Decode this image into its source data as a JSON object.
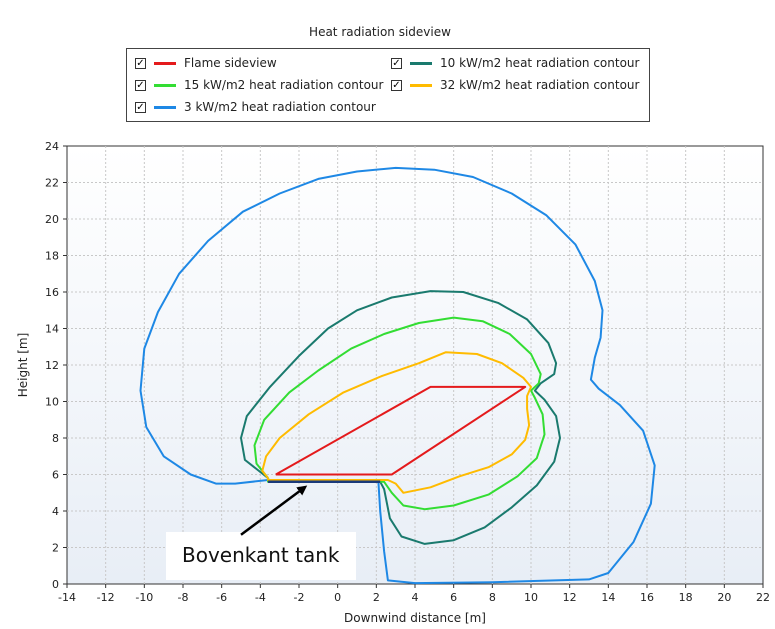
{
  "chart_data": {
    "type": "line",
    "title": "Heat radiation sideview",
    "xlabel": "Downwind distance [m]",
    "ylabel": "Height [m]",
    "xlim": [
      -14,
      22
    ],
    "ylim": [
      0,
      24
    ],
    "xticks": [
      -14,
      -12,
      -10,
      -8,
      -6,
      -4,
      -2,
      0,
      2,
      4,
      6,
      8,
      10,
      12,
      14,
      16,
      18,
      20,
      22
    ],
    "yticks": [
      0,
      2,
      4,
      6,
      8,
      10,
      12,
      14,
      16,
      18,
      20,
      22,
      24
    ],
    "grid": true,
    "legend_position": "top",
    "series": [
      {
        "name": "Flame sideview",
        "color": "#e41a1c",
        "closed": true,
        "points": [
          [
            -3.2,
            6.0
          ],
          [
            2.8,
            6.0
          ],
          [
            9.7,
            10.8
          ],
          [
            4.8,
            10.8
          ],
          [
            -3.2,
            6.0
          ]
        ]
      },
      {
        "name": "10 kW/m2 heat radiation contour",
        "color": "#1a7a6e",
        "closed": true,
        "points": [
          [
            -3.6,
            5.8
          ],
          [
            -4.8,
            6.8
          ],
          [
            -5.0,
            8.0
          ],
          [
            -4.7,
            9.2
          ],
          [
            -3.5,
            10.8
          ],
          [
            -2.0,
            12.5
          ],
          [
            -0.5,
            14.0
          ],
          [
            1.0,
            15.0
          ],
          [
            2.8,
            15.7
          ],
          [
            4.8,
            16.05
          ],
          [
            6.5,
            16.0
          ],
          [
            8.3,
            15.4
          ],
          [
            9.8,
            14.5
          ],
          [
            10.9,
            13.2
          ],
          [
            11.3,
            12.1
          ],
          [
            11.2,
            11.5
          ],
          [
            10.5,
            11.0
          ],
          [
            10.2,
            10.6
          ],
          [
            10.7,
            10.1
          ],
          [
            11.3,
            9.2
          ],
          [
            11.5,
            8.0
          ],
          [
            11.2,
            6.7
          ],
          [
            10.3,
            5.4
          ],
          [
            9.0,
            4.2
          ],
          [
            7.6,
            3.1
          ],
          [
            6.0,
            2.4
          ],
          [
            4.5,
            2.2
          ],
          [
            3.3,
            2.6
          ],
          [
            2.7,
            3.6
          ],
          [
            2.4,
            5.2
          ],
          [
            2.2,
            5.6
          ],
          [
            -3.6,
            5.6
          ],
          [
            -3.6,
            5.8
          ]
        ]
      },
      {
        "name": "15 kW/m2 heat radiation contour",
        "color": "#33dd33",
        "closed": true,
        "points": [
          [
            -3.6,
            5.8
          ],
          [
            -4.2,
            6.6
          ],
          [
            -4.3,
            7.6
          ],
          [
            -3.8,
            9.0
          ],
          [
            -2.5,
            10.5
          ],
          [
            -1.0,
            11.7
          ],
          [
            0.7,
            12.9
          ],
          [
            2.4,
            13.7
          ],
          [
            4.2,
            14.3
          ],
          [
            6.0,
            14.6
          ],
          [
            7.5,
            14.4
          ],
          [
            8.9,
            13.7
          ],
          [
            10.0,
            12.6
          ],
          [
            10.5,
            11.5
          ],
          [
            10.4,
            11.0
          ],
          [
            10.0,
            10.6
          ],
          [
            10.2,
            10.2
          ],
          [
            10.6,
            9.3
          ],
          [
            10.7,
            8.2
          ],
          [
            10.3,
            6.9
          ],
          [
            9.3,
            5.9
          ],
          [
            7.8,
            4.9
          ],
          [
            6.0,
            4.3
          ],
          [
            4.5,
            4.1
          ],
          [
            3.4,
            4.3
          ],
          [
            2.8,
            5.0
          ],
          [
            2.4,
            5.6
          ],
          [
            -3.6,
            5.6
          ],
          [
            -3.6,
            5.8
          ]
        ]
      },
      {
        "name": "32 kW/m2 heat radiation contour",
        "color": "#ffbb00",
        "closed": true,
        "points": [
          [
            -3.6,
            5.8
          ],
          [
            -3.9,
            6.2
          ],
          [
            -3.7,
            7.0
          ],
          [
            -3.0,
            8.0
          ],
          [
            -1.5,
            9.3
          ],
          [
            0.3,
            10.5
          ],
          [
            2.3,
            11.4
          ],
          [
            4.2,
            12.1
          ],
          [
            5.6,
            12.7
          ],
          [
            7.2,
            12.6
          ],
          [
            8.5,
            12.1
          ],
          [
            9.6,
            11.3
          ],
          [
            10.0,
            10.8
          ],
          [
            9.8,
            10.3
          ],
          [
            9.8,
            9.6
          ],
          [
            9.9,
            8.7
          ],
          [
            9.7,
            7.9
          ],
          [
            9.0,
            7.1
          ],
          [
            7.8,
            6.4
          ],
          [
            6.3,
            5.9
          ],
          [
            4.8,
            5.3
          ],
          [
            3.4,
            5.0
          ],
          [
            3.0,
            5.5
          ],
          [
            2.6,
            5.7
          ],
          [
            -3.6,
            5.7
          ],
          [
            -3.6,
            5.8
          ]
        ]
      },
      {
        "name": "3 kW/m2 heat radiation contour",
        "color": "#1e88e5",
        "closed": true,
        "points": [
          [
            -3.6,
            5.7
          ],
          [
            -5.3,
            5.5
          ],
          [
            -6.3,
            5.5
          ],
          [
            -7.6,
            6.0
          ],
          [
            -9.0,
            7.0
          ],
          [
            -9.9,
            8.6
          ],
          [
            -10.2,
            10.6
          ],
          [
            -10.0,
            12.9
          ],
          [
            -9.3,
            14.9
          ],
          [
            -8.2,
            17.0
          ],
          [
            -6.7,
            18.8
          ],
          [
            -4.9,
            20.4
          ],
          [
            -3.0,
            21.4
          ],
          [
            -1.0,
            22.2
          ],
          [
            1.0,
            22.6
          ],
          [
            3.0,
            22.8
          ],
          [
            5.0,
            22.7
          ],
          [
            7.0,
            22.3
          ],
          [
            9.0,
            21.4
          ],
          [
            10.8,
            20.2
          ],
          [
            12.3,
            18.6
          ],
          [
            13.3,
            16.6
          ],
          [
            13.7,
            15.0
          ],
          [
            13.6,
            13.5
          ],
          [
            13.3,
            12.4
          ],
          [
            13.1,
            11.2
          ],
          [
            13.5,
            10.7
          ],
          [
            14.6,
            9.8
          ],
          [
            15.8,
            8.4
          ],
          [
            16.4,
            6.5
          ],
          [
            16.2,
            4.4
          ],
          [
            15.3,
            2.3
          ],
          [
            14.0,
            0.6
          ],
          [
            13.0,
            0.25
          ],
          [
            8.0,
            0.1
          ],
          [
            4.0,
            0.05
          ],
          [
            2.6,
            0.2
          ],
          [
            2.4,
            1.8
          ],
          [
            2.2,
            4.0
          ],
          [
            2.1,
            5.7
          ],
          [
            -3.6,
            5.7
          ]
        ]
      },
      {
        "name": "tank-top",
        "color": "#1a3a7a",
        "closed": false,
        "points": [
          [
            -3.6,
            5.6
          ],
          [
            2.2,
            5.6
          ]
        ]
      }
    ],
    "annotation": {
      "text": "Bovenkant tank",
      "arrow_from": [
        -5.0,
        2.7
      ],
      "arrow_to": [
        -1.7,
        5.3
      ]
    }
  },
  "legend": {
    "checkmark": "✓"
  }
}
